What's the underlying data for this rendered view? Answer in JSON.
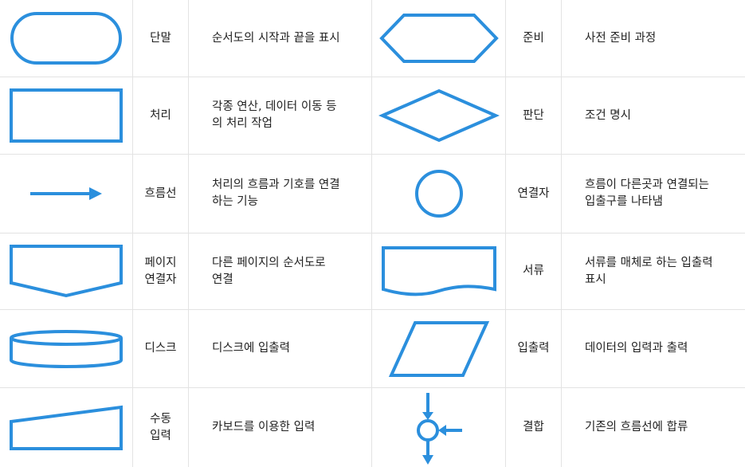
{
  "colors": {
    "shape_stroke": "#2b8fdd",
    "grid_line": "#e3e3e3",
    "text": "#222222"
  },
  "rows": [
    {
      "left": {
        "icon": "terminal-shape",
        "name": "단말",
        "desc": "순서도의 시작과 끝을 표시"
      },
      "right": {
        "icon": "preparation-shape",
        "name": "준비",
        "desc": "사전 준비 과정"
      }
    },
    {
      "left": {
        "icon": "process-shape",
        "name": "처리",
        "desc": "각종 연산, 데이터 이동 등\n의 처리 작업"
      },
      "right": {
        "icon": "decision-shape",
        "name": "판단",
        "desc": "조건 명시"
      }
    },
    {
      "left": {
        "icon": "flowline-arrow",
        "name": "흐름선",
        "desc": "처리의 흐름과 기호를 연결\n하는 기능"
      },
      "right": {
        "icon": "connector-shape",
        "name": "연결자",
        "desc": "흐름이 다른곳과 연결되는\n입출구를 나타냄"
      }
    },
    {
      "left": {
        "icon": "offpage-connector-shape",
        "name": "페이지\n연결자",
        "desc": "다른 페이지의 순서도로\n연결"
      },
      "right": {
        "icon": "document-shape",
        "name": "서류",
        "desc": "서류를 매체로 하는 입출력\n표시"
      }
    },
    {
      "left": {
        "icon": "disk-shape",
        "name": "디스크",
        "desc": "디스크에 입출력"
      },
      "right": {
        "icon": "input-output-shape",
        "name": "입출력",
        "desc": "데이터의 입력과 출력"
      }
    },
    {
      "left": {
        "icon": "manual-input-shape",
        "name": "수동\n입력",
        "desc": "카보드를 이용한 입력"
      },
      "right": {
        "icon": "junction-shape",
        "name": "결합",
        "desc": "기존의 흐름선에 합류"
      }
    }
  ]
}
